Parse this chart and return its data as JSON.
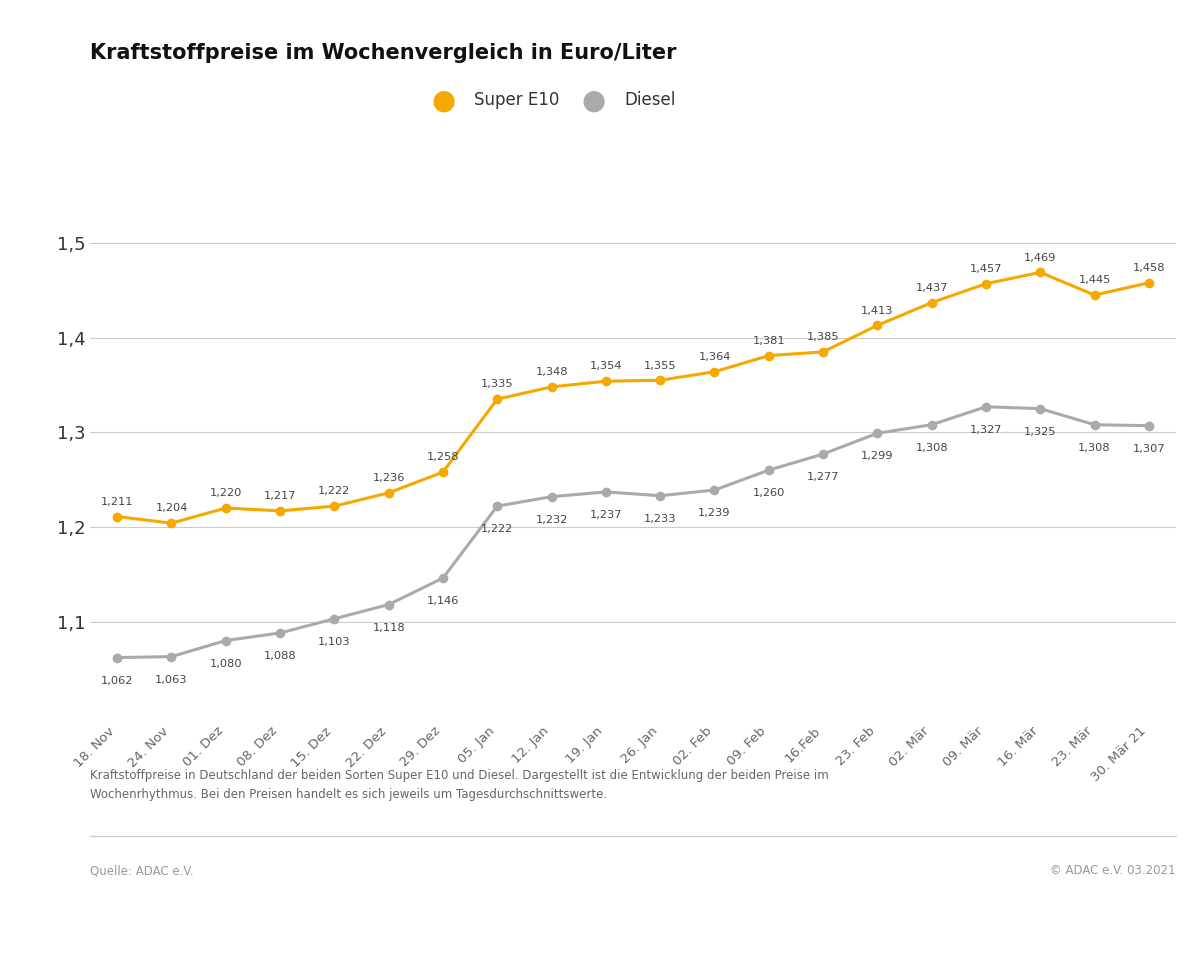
{
  "title": "Kraftstoffpreise im Wochenvergleich in Euro/Liter",
  "dates": [
    "18. Nov",
    "24. Nov",
    "01. Dez",
    "08. Dez",
    "15. Dez",
    "22. Dez",
    "29. Dez",
    "05. Jan",
    "12. Jan",
    "19. Jan",
    "26. Jan",
    "02. Feb",
    "09. Feb",
    "16.Feb",
    "23. Feb",
    "02. Mär",
    "09. Mär",
    "16. Mär",
    "23. Mär",
    "30. Mär 21"
  ],
  "super_e10": [
    1.211,
    1.204,
    1.22,
    1.217,
    1.222,
    1.236,
    1.258,
    1.335,
    1.348,
    1.354,
    1.355,
    1.364,
    1.381,
    1.385,
    1.413,
    1.437,
    1.457,
    1.469,
    1.445,
    1.458
  ],
  "diesel": [
    1.062,
    1.063,
    1.08,
    1.088,
    1.103,
    1.118,
    1.146,
    1.222,
    1.232,
    1.237,
    1.233,
    1.239,
    1.26,
    1.277,
    1.299,
    1.308,
    1.327,
    1.325,
    1.308,
    1.307
  ],
  "super_color": "#F5A800",
  "diesel_color": "#AAAAAA",
  "background_color": "#FFFFFF",
  "label_super": "Super E10",
  "label_diesel": "Diesel",
  "ylim": [
    1.0,
    1.56
  ],
  "yticks": [
    1.1,
    1.2,
    1.3,
    1.4,
    1.5
  ],
  "ytick_labels": [
    "1,1",
    "1,2",
    "1,3",
    "1,4",
    "1,5"
  ],
  "footnote": "Kraftstoffpreise in Deutschland der beiden Sorten Super E10 und Diesel. Dargestellt ist die Entwicklung der beiden Preise im\nWochenrhythmus. Bei den Preisen handelt es sich jeweils um Tagesdurchschnittswerte.",
  "source_left": "Quelle: ADAC e.V.",
  "source_right": "© ADAC e.V. 03.2021",
  "grid_color": "#CCCCCC",
  "annotation_fontsize": 8.2,
  "title_fontsize": 15,
  "tick_fontsize": 9.5,
  "ytick_fontsize": 13
}
